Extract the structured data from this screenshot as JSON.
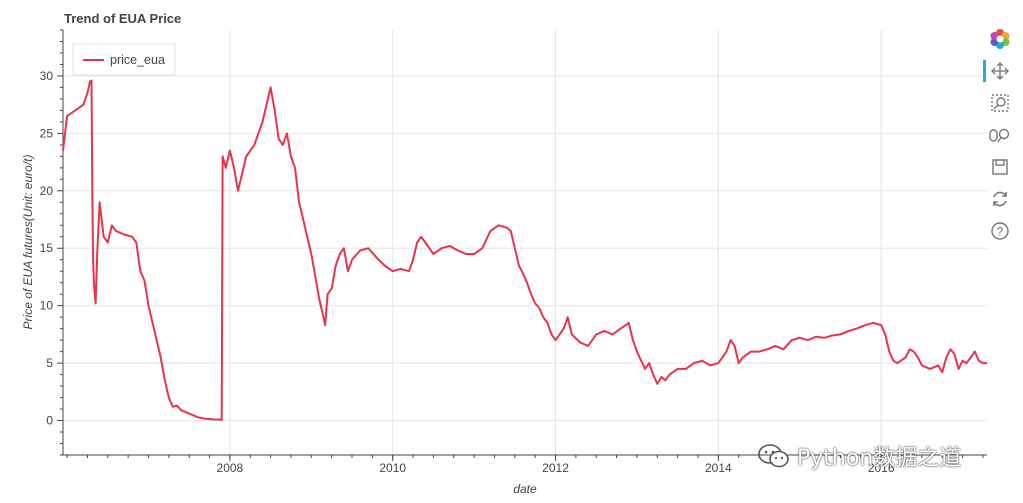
{
  "chart_data": {
    "type": "line",
    "title": "Trend of EUA Price",
    "xlabel": "date",
    "ylabel": "Price of EUA futures(Unit: euro/t)",
    "xlim": [
      2005.95,
      2017.3
    ],
    "ylim": [
      -3,
      34
    ],
    "x_ticks": [
      2008,
      2010,
      2012,
      2014,
      2016
    ],
    "x_tick_labels": [
      "2008",
      "2010",
      "2012",
      "2014",
      "2016"
    ],
    "y_ticks": [
      0,
      5,
      10,
      15,
      20,
      25,
      30
    ],
    "y_tick_labels": [
      "0",
      "5",
      "10",
      "15",
      "20",
      "25",
      "30"
    ],
    "grid": true,
    "legend": {
      "position": "top-left"
    },
    "series": [
      {
        "name": "price_eua",
        "color": "#e8344a",
        "points": [
          [
            2005.95,
            23.5
          ],
          [
            2006.0,
            26.5
          ],
          [
            2006.1,
            27.0
          ],
          [
            2006.2,
            27.5
          ],
          [
            2006.25,
            28.5
          ],
          [
            2006.28,
            29.5
          ],
          [
            2006.3,
            29.6
          ],
          [
            2006.31,
            20.0
          ],
          [
            2006.32,
            14.0
          ],
          [
            2006.33,
            12.0
          ],
          [
            2006.35,
            10.2
          ],
          [
            2006.37,
            14.5
          ],
          [
            2006.4,
            19.0
          ],
          [
            2006.45,
            16.0
          ],
          [
            2006.5,
            15.5
          ],
          [
            2006.55,
            17.0
          ],
          [
            2006.6,
            16.5
          ],
          [
            2006.7,
            16.2
          ],
          [
            2006.8,
            16.0
          ],
          [
            2006.85,
            15.5
          ],
          [
            2006.9,
            13.0
          ],
          [
            2006.95,
            12.2
          ],
          [
            2007.0,
            10.0
          ],
          [
            2007.05,
            8.5
          ],
          [
            2007.1,
            7.0
          ],
          [
            2007.15,
            5.5
          ],
          [
            2007.2,
            3.5
          ],
          [
            2007.25,
            2.0
          ],
          [
            2007.3,
            1.2
          ],
          [
            2007.35,
            1.3
          ],
          [
            2007.4,
            0.9
          ],
          [
            2007.5,
            0.6
          ],
          [
            2007.6,
            0.3
          ],
          [
            2007.7,
            0.15
          ],
          [
            2007.8,
            0.1
          ],
          [
            2007.9,
            0.08
          ],
          [
            2007.9,
            0.05
          ],
          [
            2007.91,
            23.0
          ],
          [
            2007.95,
            22.0
          ],
          [
            2008.0,
            23.5
          ],
          [
            2008.05,
            22.0
          ],
          [
            2008.1,
            20.0
          ],
          [
            2008.15,
            21.5
          ],
          [
            2008.2,
            23.0
          ],
          [
            2008.3,
            24.0
          ],
          [
            2008.35,
            25.0
          ],
          [
            2008.4,
            26.0
          ],
          [
            2008.45,
            27.5
          ],
          [
            2008.5,
            29.0
          ],
          [
            2008.55,
            27.0
          ],
          [
            2008.6,
            24.5
          ],
          [
            2008.65,
            24.0
          ],
          [
            2008.7,
            25.0
          ],
          [
            2008.75,
            23.0
          ],
          [
            2008.8,
            22.0
          ],
          [
            2008.85,
            19.0
          ],
          [
            2008.9,
            17.5
          ],
          [
            2008.95,
            16.0
          ],
          [
            2009.0,
            14.5
          ],
          [
            2009.05,
            12.5
          ],
          [
            2009.1,
            10.5
          ],
          [
            2009.15,
            9.0
          ],
          [
            2009.17,
            8.3
          ],
          [
            2009.2,
            11.0
          ],
          [
            2009.25,
            11.5
          ],
          [
            2009.3,
            13.5
          ],
          [
            2009.35,
            14.5
          ],
          [
            2009.4,
            15.0
          ],
          [
            2009.45,
            13.0
          ],
          [
            2009.5,
            14.0
          ],
          [
            2009.6,
            14.8
          ],
          [
            2009.7,
            15.0
          ],
          [
            2009.8,
            14.2
          ],
          [
            2009.9,
            13.5
          ],
          [
            2010.0,
            13.0
          ],
          [
            2010.1,
            13.2
          ],
          [
            2010.2,
            13.0
          ],
          [
            2010.25,
            14.0
          ],
          [
            2010.3,
            15.5
          ],
          [
            2010.35,
            16.0
          ],
          [
            2010.4,
            15.5
          ],
          [
            2010.5,
            14.5
          ],
          [
            2010.6,
            15.0
          ],
          [
            2010.7,
            15.2
          ],
          [
            2010.8,
            14.8
          ],
          [
            2010.9,
            14.5
          ],
          [
            2011.0,
            14.5
          ],
          [
            2011.1,
            15.0
          ],
          [
            2011.2,
            16.5
          ],
          [
            2011.3,
            17.0
          ],
          [
            2011.4,
            16.8
          ],
          [
            2011.45,
            16.5
          ],
          [
            2011.5,
            15.0
          ],
          [
            2011.55,
            13.5
          ],
          [
            2011.6,
            12.8
          ],
          [
            2011.65,
            12.0
          ],
          [
            2011.7,
            11.0
          ],
          [
            2011.75,
            10.2
          ],
          [
            2011.8,
            9.8
          ],
          [
            2011.85,
            9.0
          ],
          [
            2011.9,
            8.5
          ],
          [
            2011.95,
            7.5
          ],
          [
            2012.0,
            7.0
          ],
          [
            2012.05,
            7.5
          ],
          [
            2012.1,
            8.0
          ],
          [
            2012.15,
            9.0
          ],
          [
            2012.2,
            7.5
          ],
          [
            2012.3,
            6.8
          ],
          [
            2012.4,
            6.5
          ],
          [
            2012.5,
            7.5
          ],
          [
            2012.6,
            7.8
          ],
          [
            2012.7,
            7.5
          ],
          [
            2012.8,
            8.0
          ],
          [
            2012.9,
            8.5
          ],
          [
            2012.95,
            7.0
          ],
          [
            2013.0,
            6.0
          ],
          [
            2013.1,
            4.5
          ],
          [
            2013.15,
            5.0
          ],
          [
            2013.2,
            4.0
          ],
          [
            2013.25,
            3.2
          ],
          [
            2013.3,
            3.8
          ],
          [
            2013.35,
            3.5
          ],
          [
            2013.4,
            4.0
          ],
          [
            2013.5,
            4.5
          ],
          [
            2013.6,
            4.5
          ],
          [
            2013.7,
            5.0
          ],
          [
            2013.8,
            5.2
          ],
          [
            2013.9,
            4.8
          ],
          [
            2014.0,
            5.0
          ],
          [
            2014.05,
            5.5
          ],
          [
            2014.1,
            6.0
          ],
          [
            2014.15,
            7.0
          ],
          [
            2014.2,
            6.5
          ],
          [
            2014.25,
            5.0
          ],
          [
            2014.3,
            5.5
          ],
          [
            2014.4,
            6.0
          ],
          [
            2014.5,
            6.0
          ],
          [
            2014.6,
            6.2
          ],
          [
            2014.7,
            6.5
          ],
          [
            2014.8,
            6.2
          ],
          [
            2014.9,
            7.0
          ],
          [
            2015.0,
            7.2
          ],
          [
            2015.1,
            7.0
          ],
          [
            2015.2,
            7.3
          ],
          [
            2015.3,
            7.2
          ],
          [
            2015.4,
            7.4
          ],
          [
            2015.5,
            7.5
          ],
          [
            2015.6,
            7.8
          ],
          [
            2015.7,
            8.0
          ],
          [
            2015.8,
            8.3
          ],
          [
            2015.9,
            8.5
          ],
          [
            2016.0,
            8.3
          ],
          [
            2016.05,
            7.5
          ],
          [
            2016.1,
            6.0
          ],
          [
            2016.15,
            5.2
          ],
          [
            2016.2,
            5.0
          ],
          [
            2016.3,
            5.5
          ],
          [
            2016.35,
            6.2
          ],
          [
            2016.4,
            6.0
          ],
          [
            2016.45,
            5.5
          ],
          [
            2016.5,
            4.8
          ],
          [
            2016.6,
            4.5
          ],
          [
            2016.7,
            4.8
          ],
          [
            2016.75,
            4.2
          ],
          [
            2016.8,
            5.5
          ],
          [
            2016.85,
            6.2
          ],
          [
            2016.9,
            5.8
          ],
          [
            2016.95,
            4.5
          ],
          [
            2017.0,
            5.2
          ],
          [
            2017.05,
            5.0
          ],
          [
            2017.1,
            5.5
          ],
          [
            2017.15,
            6.0
          ],
          [
            2017.2,
            5.2
          ],
          [
            2017.25,
            5.0
          ],
          [
            2017.3,
            5.0
          ]
        ]
      }
    ]
  },
  "toolbar": {
    "tools": [
      {
        "name": "bokeh-logo-icon"
      },
      {
        "name": "pan-icon"
      },
      {
        "name": "box-zoom-icon"
      },
      {
        "name": "wheel-zoom-icon"
      },
      {
        "name": "save-icon"
      },
      {
        "name": "reset-icon"
      },
      {
        "name": "help-icon"
      }
    ]
  },
  "watermark": {
    "text": "Python数据之道"
  }
}
